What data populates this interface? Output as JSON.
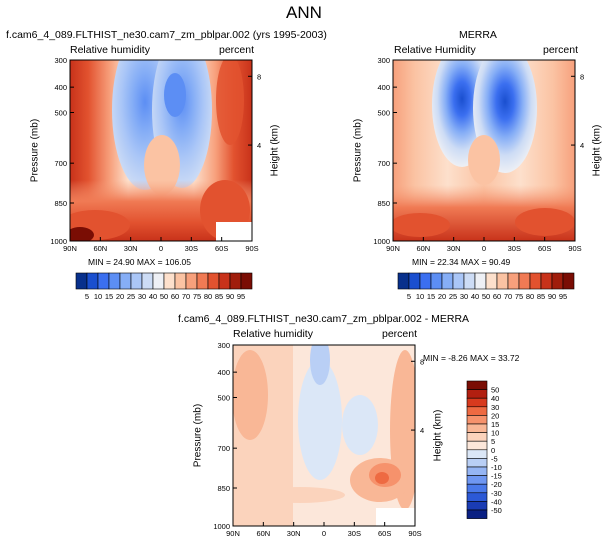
{
  "figure": {
    "title": "ANN"
  },
  "panels": [
    {
      "id": "model",
      "title": "f.cam6_4_089.FLTHIST_ne30.cam7_zm_pblpar.002 (yrs 1995-2003)",
      "left_label": "Relative humidity",
      "right_label": "percent",
      "stats": "MIN = 24.90   MAX = 106.05"
    },
    {
      "id": "obs",
      "title": "MERRA",
      "left_label": "Relative Humidity",
      "right_label": "percent",
      "stats": "MIN = 22.34   MAX = 90.49"
    },
    {
      "id": "diff",
      "title": "f.cam6_4_089.FLTHIST_ne30.cam7_zm_pblpar.002 - MERRA",
      "left_label": "Relative humidity",
      "right_label": "percent",
      "stats": "MIN = -8.26   MAX = 33.72"
    }
  ],
  "axes": {
    "ylabel": "Pressure (mb)",
    "y2label": "Height (km)",
    "pressure_ticks": [
      "300",
      "400",
      "500",
      "700",
      "850",
      "1000"
    ],
    "height_ticks": [
      "8",
      "4"
    ],
    "lat_ticks": [
      "90N",
      "60N",
      "30N",
      "0",
      "30S",
      "60S",
      "90S"
    ]
  },
  "colorbars": {
    "abs": {
      "labels": [
        "5",
        "10",
        "15",
        "20",
        "25",
        "30",
        "40",
        "50",
        "60",
        "70",
        "75",
        "80",
        "85",
        "90",
        "95"
      ],
      "colors": [
        "#08308c",
        "#1a4fcf",
        "#3b6ff0",
        "#5c8ef4",
        "#86aef6",
        "#aac6f7",
        "#cddcf5",
        "#eef0f5",
        "#fde0cc",
        "#fbc3a3",
        "#f7a07c",
        "#f07a54",
        "#e2522f",
        "#c8321a",
        "#a01d0c",
        "#7a0d04"
      ]
    },
    "diff": {
      "labels": [
        "50",
        "40",
        "30",
        "20",
        "15",
        "10",
        "5",
        "0",
        "-5",
        "-10",
        "-15",
        "-20",
        "-30",
        "-40",
        "-50"
      ],
      "colors": [
        "#7a0d04",
        "#b21f10",
        "#d83a1e",
        "#ee6a42",
        "#f6926c",
        "#f9b796",
        "#fbd3bc",
        "#fce7da",
        "#dbe7f7",
        "#b9cff5",
        "#95b5f4",
        "#6f97f2",
        "#4a79ea",
        "#2c59d6",
        "#1a3cb4",
        "#0a2083"
      ]
    }
  },
  "chart_data": [
    {
      "type": "heatmap",
      "title": "f.cam6_4_089.FLTHIST_ne30.cam7_zm_pblpar.002 (yrs 1995-2003)",
      "variable": "Relative humidity",
      "units": "percent",
      "xlabel": "",
      "ylabel": "Pressure (mb)",
      "y2label": "Height (km)",
      "x_ticks": [
        "90N",
        "60N",
        "30N",
        "0",
        "30S",
        "60S",
        "90S"
      ],
      "y_ticks": [
        300,
        400,
        500,
        700,
        850,
        1000
      ],
      "min": 24.9,
      "max": 106.05
    },
    {
      "type": "heatmap",
      "title": "MERRA",
      "variable": "Relative Humidity",
      "units": "percent",
      "xlabel": "",
      "ylabel": "Pressure (mb)",
      "y2label": "Height (km)",
      "x_ticks": [
        "90N",
        "60N",
        "30N",
        "0",
        "30S",
        "60S",
        "90S"
      ],
      "y_ticks": [
        300,
        400,
        500,
        700,
        850,
        1000
      ],
      "min": 22.34,
      "max": 90.49
    },
    {
      "type": "heatmap",
      "title": "f.cam6_4_089.FLTHIST_ne30.cam7_zm_pblpar.002 - MERRA",
      "variable": "Relative humidity",
      "units": "percent",
      "xlabel": "",
      "ylabel": "Pressure (mb)",
      "y2label": "Height (km)",
      "x_ticks": [
        "90N",
        "60N",
        "30N",
        "0",
        "30S",
        "60S",
        "90S"
      ],
      "y_ticks": [
        300,
        400,
        500,
        700,
        850,
        1000
      ],
      "min": -8.26,
      "max": 33.72
    }
  ]
}
